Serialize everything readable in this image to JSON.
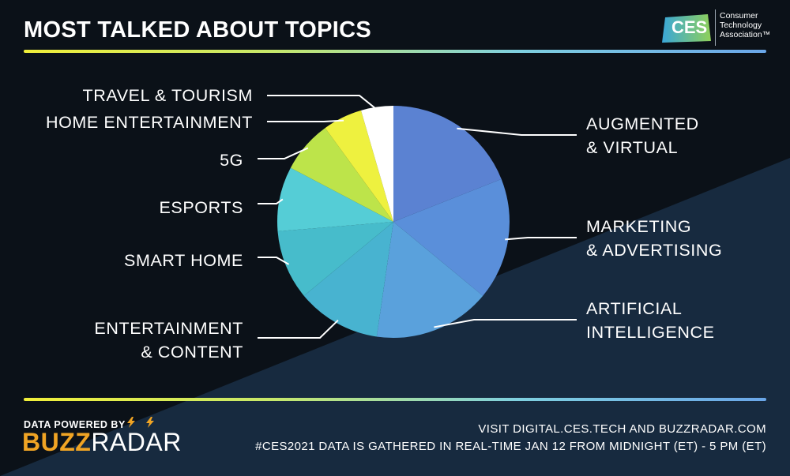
{
  "header": {
    "title": "MOST TALKED ABOUT TOPICS"
  },
  "logo": {
    "mark": "CES",
    "org": "Consumer Technology Association™"
  },
  "chart_data": {
    "type": "pie",
    "title": "MOST TALKED ABOUT TOPICS",
    "slices": [
      {
        "label": "AUGMENTED & VIRTUAL",
        "value": 19.0,
        "color": "#5b82d2"
      },
      {
        "label": "MARKETING & ADVERTISING",
        "value": 17.0,
        "color": "#5a8fda"
      },
      {
        "label": "ARTIFICIAL INTELLIGENCE",
        "value": 16.3,
        "color": "#5aa1dc"
      },
      {
        "label": "ENTERTAINMENT & CONTENT",
        "value": 11.7,
        "color": "#48b3d0"
      },
      {
        "label": "SMART HOME",
        "value": 9.7,
        "color": "#47bccb"
      },
      {
        "label": "ESPORTS",
        "value": 9.0,
        "color": "#55cdd6"
      },
      {
        "label": "5G",
        "value": 7.3,
        "color": "#bde44a"
      },
      {
        "label": "HOME ENTERTAINMENT",
        "value": 5.5,
        "color": "#eef13f"
      },
      {
        "label": "TRAVEL & TOURISM",
        "value": 4.5,
        "color": "#ffffff"
      }
    ]
  },
  "footer": {
    "powered_by": "DATA POWERED BY",
    "brand_part1": "BUZZ",
    "brand_part2": "RADAR",
    "line1": "VISIT DIGITAL.CES.TECH AND BUZZRADAR.COM",
    "line2": "#CES2021 DATA IS GATHERED IN REAL-TIME JAN 12 FROM MIDNIGHT (ET) - 5 PM (ET)"
  }
}
